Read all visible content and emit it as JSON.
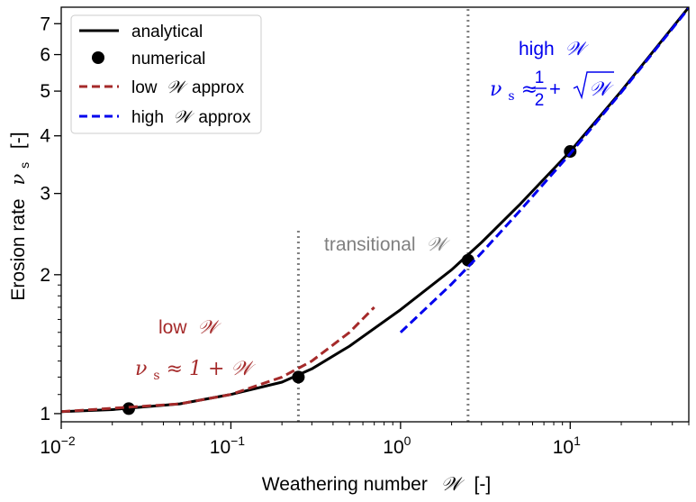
{
  "chart_data": {
    "type": "line",
    "xscale": "log",
    "yscale": "log",
    "xlim": [
      0.01,
      50
    ],
    "ylim": [
      0.96,
      7.6
    ],
    "xlabel": "Weathering number",
    "xlabel_symbol": "𝒲",
    "xlabel_unit": "[-]",
    "ylabel": "Erosion rate",
    "ylabel_symbol": "ν",
    "ylabel_symbol_sub": "s",
    "ylabel_unit": "[-]",
    "xticks": [
      {
        "value": 0.01,
        "base": "10",
        "exp": "−2"
      },
      {
        "value": 0.1,
        "base": "10",
        "exp": "−1"
      },
      {
        "value": 1,
        "base": "10",
        "exp": "0"
      },
      {
        "value": 10,
        "base": "10",
        "exp": "1"
      }
    ],
    "yticks": [
      {
        "value": 1,
        "label": "1"
      },
      {
        "value": 2,
        "label": "2"
      },
      {
        "value": 3,
        "label": "3"
      },
      {
        "value": 4,
        "label": "4"
      },
      {
        "value": 5,
        "label": "5"
      },
      {
        "value": 6,
        "label": "6"
      },
      {
        "value": 7,
        "label": "7"
      }
    ],
    "series": [
      {
        "name": "analytical",
        "style": "solid",
        "color": "#000000",
        "x": [
          0.01,
          0.02,
          0.05,
          0.1,
          0.2,
          0.3,
          0.5,
          1,
          2,
          3,
          5,
          10,
          20,
          50
        ],
        "y": [
          1.01,
          1.02,
          1.05,
          1.1,
          1.17,
          1.25,
          1.4,
          1.68,
          2.05,
          2.35,
          2.83,
          3.7,
          5.0,
          7.6
        ]
      },
      {
        "name": "numerical",
        "style": "markers",
        "color": "#000000",
        "x": [
          0.025,
          0.25,
          2.5,
          10
        ],
        "y": [
          1.025,
          1.2,
          2.15,
          3.7
        ]
      },
      {
        "name": "low 𝒲 approx",
        "legend_main": "low",
        "legend_symbol": "𝒲",
        "legend_tail": "approx",
        "style": "dashed",
        "color": "#a52a2a",
        "x": [
          0.01,
          0.05,
          0.1,
          0.2,
          0.3,
          0.5,
          0.7
        ],
        "y": [
          1.01,
          1.05,
          1.1,
          1.2,
          1.3,
          1.5,
          1.7
        ]
      },
      {
        "name": "high 𝒲 approx",
        "legend_main": "high",
        "legend_symbol": "𝒲",
        "legend_tail": "approx",
        "style": "dashed",
        "color": "#0000ee",
        "x": [
          1,
          2,
          3,
          5,
          10,
          20,
          50
        ],
        "y": [
          1.5,
          1.91,
          2.23,
          2.74,
          3.66,
          4.97,
          7.57
        ]
      }
    ],
    "vlines": [
      {
        "x": 0.25,
        "y_top": 2.5,
        "color": "#808080",
        "style": "dotted"
      },
      {
        "x": 2.5,
        "y_top": 7.6,
        "color": "#808080",
        "style": "dotted"
      }
    ],
    "annotations": [
      {
        "id": "low-title",
        "text_main": "low",
        "text_symbol": "𝒲",
        "color": "#a52a2a"
      },
      {
        "id": "low-eq",
        "text": "ν",
        "sub": "s",
        "rest": " ≈ 1 + 𝒲",
        "color": "#a52a2a"
      },
      {
        "id": "transitional",
        "text_main": "transitional",
        "text_symbol": "𝒲",
        "color": "#808080"
      },
      {
        "id": "high-title",
        "text_main": "high",
        "text_symbol": "𝒲",
        "color": "#0000ee"
      },
      {
        "id": "high-eq",
        "text": "ν",
        "sub": "s",
        "approx": " ≈ ",
        "frac_num": "1",
        "frac_den": "2",
        "plus": " + ",
        "sqrt_sym": "𝒲",
        "color": "#0000ee"
      }
    ],
    "legend": {
      "position": "top-left"
    },
    "grid": false
  }
}
